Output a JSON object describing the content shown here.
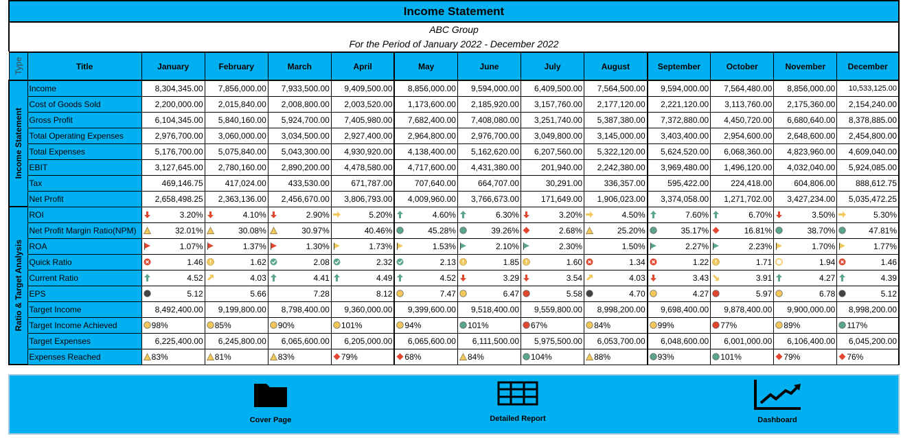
{
  "title": "Income Statement",
  "company": "ABC Group",
  "period": "For the Period  of January 2022 - December 2022",
  "header": {
    "type": "Type",
    "title": "Title",
    "months": [
      "January",
      "February",
      "March",
      "April",
      "May",
      "June",
      "July",
      "August",
      "September",
      "October",
      "November",
      "December"
    ]
  },
  "sections": {
    "income": "Income Statement",
    "ratio": "Ratio & Target Analysis"
  },
  "income_rows": [
    {
      "label": "Income",
      "values": [
        "8,304,345.00",
        "7,856,000.00",
        "7,933,500.00",
        "9,409,500.00",
        "8,856,000.00",
        "9,594,000.00",
        "6,409,500.00",
        "7,564,500.00",
        "9,594,000.00",
        "7,564,480.00",
        "8,856,000.00",
        "10,533,125.00"
      ]
    },
    {
      "label": "Cost of Goods Sold",
      "values": [
        "2,200,000.00",
        "2,015,840.00",
        "2,008,800.00",
        "2,003,520.00",
        "1,173,600.00",
        "2,185,920.00",
        "3,157,760.00",
        "2,177,120.00",
        "2,221,120.00",
        "3,113,760.00",
        "2,175,360.00",
        "2,154,240.00"
      ]
    },
    {
      "label": "Gross Profit",
      "values": [
        "6,104,345.00",
        "5,840,160.00",
        "5,924,700.00",
        "7,405,980.00",
        "7,682,400.00",
        "7,408,080.00",
        "3,251,740.00",
        "5,387,380.00",
        "7,372,880.00",
        "4,450,720.00",
        "6,680,640.00",
        "8,378,885.00"
      ]
    },
    {
      "label": "Total Operating Expenses",
      "values": [
        "2,976,700.00",
        "3,060,000.00",
        "3,034,500.00",
        "2,927,400.00",
        "2,964,800.00",
        "2,976,700.00",
        "3,049,800.00",
        "3,145,000.00",
        "3,403,400.00",
        "2,954,600.00",
        "2,648,600.00",
        "2,454,800.00"
      ]
    },
    {
      "label": "Total Expenses",
      "values": [
        "5,176,700.00",
        "5,075,840.00",
        "5,043,300.00",
        "4,930,920.00",
        "4,138,400.00",
        "5,162,620.00",
        "6,207,560.00",
        "5,322,120.00",
        "5,624,520.00",
        "6,068,360.00",
        "4,823,960.00",
        "4,609,040.00"
      ]
    },
    {
      "label": "EBIT",
      "values": [
        "3,127,645.00",
        "2,780,160.00",
        "2,890,200.00",
        "4,478,580.00",
        "4,717,600.00",
        "4,431,380.00",
        "201,940.00",
        "2,242,380.00",
        "3,969,480.00",
        "1,496,120.00",
        "4,032,040.00",
        "5,924,085.00"
      ]
    },
    {
      "label": "Tax",
      "values": [
        "469,146.75",
        "417,024.00",
        "433,530.00",
        "671,787.00",
        "707,640.00",
        "664,707.00",
        "30,291.00",
        "336,357.00",
        "595,422.00",
        "224,418.00",
        "604,806.00",
        "888,612.75"
      ]
    },
    {
      "label": "Net Profit",
      "values": [
        "2,658,498.25",
        "2,363,136.00",
        "2,456,670.00",
        "3,806,793.00",
        "4,009,960.00",
        "3,766,673.00",
        "171,649.00",
        "1,906,023.00",
        "3,374,058.00",
        "1,271,702.00",
        "3,427,234.00",
        "5,035,472.25"
      ]
    }
  ],
  "ratio_rows": [
    {
      "label": "ROI",
      "icons": [
        "arrow-down-red",
        "arrow-down-red",
        "arrow-down-red",
        "arrow-right-yellow",
        "arrow-up-green",
        "arrow-up-green",
        "arrow-down-red",
        "arrow-right-yellow",
        "arrow-up-green",
        "arrow-up-green",
        "arrow-down-red",
        "arrow-right-yellow"
      ],
      "values": [
        "3.20%",
        "4.10%",
        "2.90%",
        "5.20%",
        "4.60%",
        "6.30%",
        "3.20%",
        "4.50%",
        "7.60%",
        "6.70%",
        "3.50%",
        "5.30%"
      ]
    },
    {
      "label": "Net Profit Margin Ratio(NPM)",
      "icons": [
        "triangle-yellow",
        "triangle-yellow",
        "triangle-yellow",
        "none",
        "circle-green",
        "circle-green",
        "diamond-red",
        "triangle-yellow",
        "circle-green",
        "diamond-red",
        "circle-green",
        "circle-green"
      ],
      "values": [
        "32.01%",
        "30.08%",
        "30.97%",
        "40.46%",
        "45.28%",
        "39.26%",
        "2.68%",
        "25.20%",
        "35.17%",
        "16.81%",
        "38.70%",
        "47.81%"
      ]
    },
    {
      "label": "ROA",
      "icons": [
        "flag-red",
        "flag-red",
        "flag-red",
        "flag-yellow",
        "flag-yellow",
        "flag-green",
        "flag-green",
        "none",
        "flag-green",
        "flag-green",
        "flag-yellow",
        "flag-yellow"
      ],
      "values": [
        "1.07%",
        "1.37%",
        "1.30%",
        "1.73%",
        "1.53%",
        "2.10%",
        "2.30%",
        "1.50%",
        "2.27%",
        "2.23%",
        "1.70%",
        "1.77%"
      ]
    },
    {
      "label": "Quick Ratio",
      "icons": [
        "x-red",
        "excl-yellow",
        "check-green",
        "check-green",
        "check-green",
        "excl-yellow",
        "excl-yellow",
        "x-red",
        "x-red",
        "excl-yellow",
        "ring-yellow",
        "x-red"
      ],
      "values": [
        "1.46",
        "1.62",
        "2.08",
        "2.32",
        "2.13",
        "1.85",
        "1.60",
        "1.34",
        "1.22",
        "1.71",
        "1.94",
        "1.46"
      ]
    },
    {
      "label": "Current Ratio",
      "icons": [
        "arrow-up-green",
        "arrow-diag-yellow",
        "arrow-up-green",
        "arrow-up-green",
        "arrow-up-green",
        "arrow-down-red",
        "arrow-down-red",
        "arrow-diag-yellow",
        "arrow-down-red",
        "arrow-diagdown-yellow",
        "arrow-up-green",
        "arrow-up-green"
      ],
      "values": [
        "4.52",
        "4.03",
        "4.41",
        "4.49",
        "4.52",
        "3.29",
        "3.54",
        "4.03",
        "3.43",
        "3.91",
        "4.27",
        "4.39"
      ]
    },
    {
      "label": "EPS",
      "icons": [
        "ball-black",
        "none",
        "none",
        "none",
        "ball-yellow",
        "ball-yellow",
        "ball-red",
        "ball-black",
        "ball-yellow",
        "ball-red",
        "ball-yellow",
        "ball-black"
      ],
      "values": [
        "5.12",
        "5.66",
        "7.28",
        "8.12",
        "7.47",
        "6.47",
        "5.58",
        "4.70",
        "4.27",
        "5.97",
        "6.78",
        "5.12"
      ]
    }
  ],
  "target_rows": [
    {
      "label": "Target Income",
      "values": [
        "8,492,400.00",
        "9,199,800.00",
        "8,798,400.00",
        "9,360,000.00",
        "9,399,600.00",
        "9,518,400.00",
        "9,559,800.00",
        "8,998,200.00",
        "9,698,400.00",
        "9,878,400.00",
        "9,900,000.00",
        "8,998,200.00"
      ]
    },
    {
      "label": "Target Income Achieved",
      "icons": [
        "circle-yellow",
        "circle-yellow",
        "circle-yellow",
        "circle-yellow",
        "circle-yellow",
        "circle-green",
        "circle-red",
        "circle-yellow",
        "circle-yellow",
        "circle-red",
        "circle-yellow",
        "circle-green"
      ],
      "values": [
        "98%",
        "85%",
        "90%",
        "101%",
        "94%",
        "101%",
        "67%",
        "84%",
        "99%",
        "77%",
        "89%",
        "117%"
      ]
    },
    {
      "label": "Target Expenses",
      "values": [
        "6,225,400.00",
        "6,245,800.00",
        "6,065,600.00",
        "6,205,000.00",
        "6,065,600.00",
        "6,111,500.00",
        "5,975,500.00",
        "6,053,700.00",
        "6,048,600.00",
        "6,001,000.00",
        "6,106,400.00",
        "6,045,200.00"
      ]
    },
    {
      "label": "Expenses Reached",
      "icons": [
        "triangle-yellow",
        "triangle-yellow",
        "triangle-yellow",
        "diamond-red",
        "diamond-red",
        "triangle-yellow",
        "circle-green",
        "triangle-yellow",
        "circle-green",
        "circle-green",
        "diamond-red",
        "diamond-red"
      ],
      "values": [
        "83%",
        "81%",
        "83%",
        "79%",
        "68%",
        "84%",
        "104%",
        "88%",
        "93%",
        "101%",
        "79%",
        "76%"
      ]
    }
  ],
  "footer": {
    "cover": "Cover Page",
    "report": "Detailed Report",
    "dashboard": "Dashboard"
  },
  "colors": {
    "accent": "#00b0f0",
    "red": "#e0472e",
    "yellow": "#f2c85b",
    "green": "#5aa58c"
  }
}
